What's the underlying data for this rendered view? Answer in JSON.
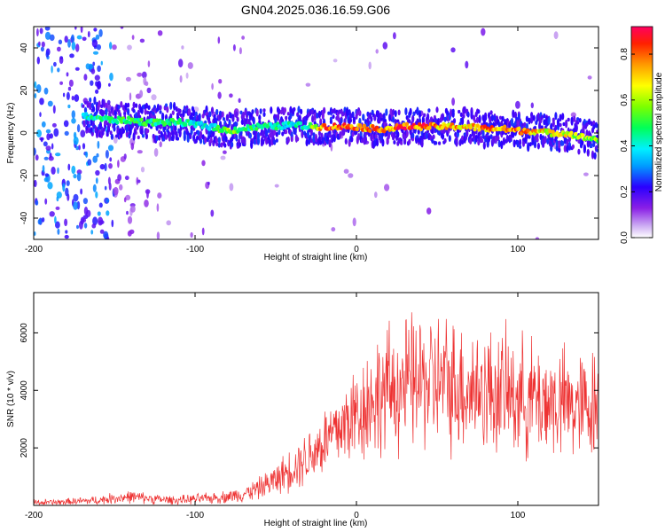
{
  "title": "GN04.2025.036.16.59.G06",
  "chart_data": [
    {
      "type": "heatmap",
      "xlabel": "Height of straight line (km)",
      "ylabel": "Frequency (Hz)",
      "xlim": [
        -200,
        150
      ],
      "ylim": [
        -50,
        50
      ],
      "x_ticks": [
        -200,
        -100,
        0,
        100
      ],
      "y_ticks": [
        -40,
        -20,
        0,
        20,
        40
      ],
      "colorbar": {
        "label": "Normalized spectral amplitude",
        "range": [
          0,
          0.92
        ],
        "ticks": [
          0.0,
          0.2,
          0.4,
          0.6,
          0.8
        ],
        "tick_labels": [
          "0.0",
          "0.2",
          "0.4",
          "0.6",
          "0.8"
        ],
        "colormap": [
          "#ffffff",
          "#c9a6f2",
          "#8a1fe6",
          "#2a00ff",
          "#009cff",
          "#00f0ff",
          "#00ff58",
          "#7cff00",
          "#ffff00",
          "#ff9a00",
          "#ff2000",
          "#ff0060"
        ]
      },
      "ridge": {
        "x": [
          -170,
          -160,
          -150,
          -140,
          -130,
          -120,
          -110,
          -100,
          -90,
          -80,
          -70,
          -60,
          -50,
          -40,
          -30,
          -20,
          -10,
          0,
          10,
          20,
          30,
          40,
          50,
          60,
          70,
          80,
          90,
          100,
          110,
          120,
          130,
          140,
          150
        ],
        "frequency_hz": [
          8,
          7,
          6,
          6,
          5,
          5,
          5,
          4,
          3,
          1,
          2,
          3,
          3,
          4,
          3,
          3,
          3,
          3,
          2,
          2,
          3,
          3,
          3,
          3,
          3,
          2,
          2,
          1,
          1,
          0,
          0,
          -2,
          -3
        ],
        "peak_amplitude": [
          0.45,
          0.5,
          0.5,
          0.55,
          0.55,
          0.5,
          0.5,
          0.45,
          0.45,
          0.65,
          0.5,
          0.5,
          0.5,
          0.45,
          0.5,
          0.85,
          0.9,
          0.85,
          0.85,
          0.85,
          0.9,
          0.9,
          0.8,
          0.8,
          0.75,
          0.85,
          0.85,
          0.85,
          0.8,
          0.7,
          0.7,
          0.65,
          0.6
        ]
      }
    },
    {
      "type": "line",
      "xlabel": "Height of straight line (km)",
      "ylabel": "SNR (10 * v/v)",
      "xlim": [
        -200,
        150
      ],
      "ylim": [
        0,
        7400
      ],
      "x_ticks": [
        -200,
        -100,
        0,
        100
      ],
      "y_ticks": [
        2000,
        4000,
        6000
      ],
      "color": "#ee3333",
      "series": [
        {
          "x": [
            -200,
            -190,
            -180,
            -170,
            -160,
            -150,
            -140,
            -130,
            -120,
            -110,
            -100,
            -90,
            -80,
            -70,
            -60,
            -50,
            -40,
            -30,
            -20,
            -10,
            0,
            10,
            20,
            30,
            40,
            50,
            60,
            70,
            80,
            90,
            100,
            110,
            120,
            130,
            140,
            150
          ],
          "y": [
            100,
            100,
            120,
            150,
            180,
            250,
            300,
            250,
            200,
            180,
            220,
            250,
            300,
            400,
            600,
            900,
            1300,
            1700,
            2200,
            2700,
            3200,
            3700,
            4000,
            4200,
            4300,
            4300,
            4200,
            4100,
            4000,
            3900,
            3800,
            3700,
            3600,
            3500,
            3400,
            3600
          ]
        }
      ]
    }
  ]
}
